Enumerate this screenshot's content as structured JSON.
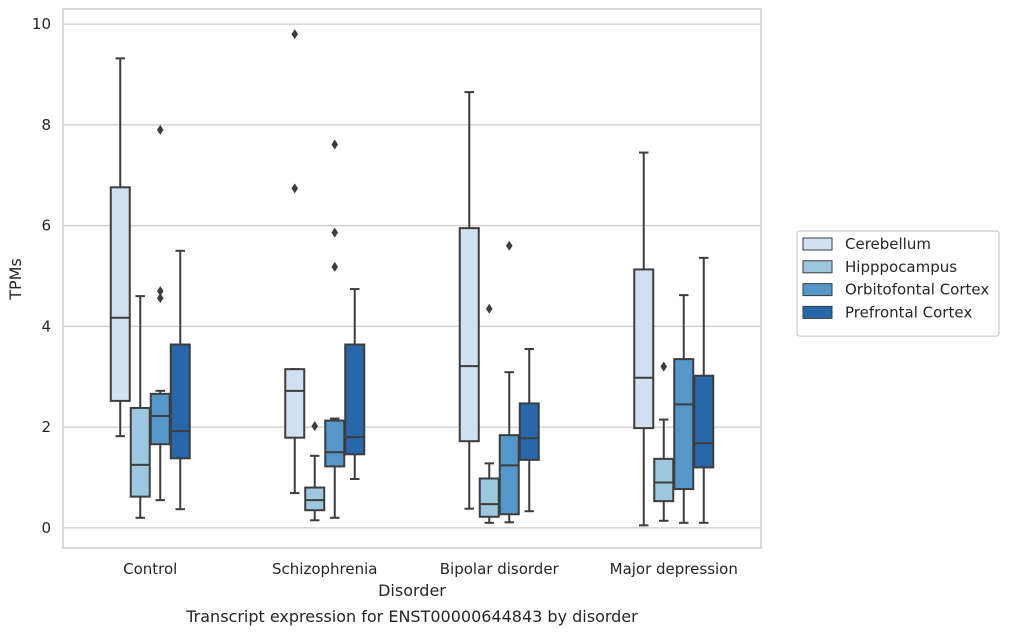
{
  "caption": "Transcript expression for ENST00000644843 by disorder",
  "chart_data": {
    "type": "box",
    "title": "",
    "xlabel": "Disorder",
    "ylabel": "TPMs",
    "ylim": [
      -0.4,
      10.3
    ],
    "yticks": [
      0,
      2,
      4,
      6,
      8,
      10
    ],
    "ytick_labels": [
      "0",
      "2",
      "4",
      "6",
      "8",
      "10"
    ],
    "grid": "horizontal",
    "legend_position": "right",
    "categories": [
      "Control",
      "Schizophrenia",
      "Bipolar disorder",
      "Major depression"
    ],
    "series": [
      {
        "name": "Cerebellum",
        "color": "#d0e1f2",
        "boxes": [
          {
            "whislo": 1.82,
            "q1": 2.52,
            "med": 4.17,
            "q3": 6.76,
            "whishi": 9.32,
            "fliers": []
          },
          {
            "whislo": 0.69,
            "q1": 1.79,
            "med": 2.72,
            "q3": 3.15,
            "whishi": 3.15,
            "fliers": [
              6.74,
              9.8
            ]
          },
          {
            "whislo": 0.38,
            "q1": 1.72,
            "med": 3.21,
            "q3": 5.95,
            "whishi": 8.65,
            "fliers": []
          },
          {
            "whislo": 0.05,
            "q1": 1.98,
            "med": 2.98,
            "q3": 5.13,
            "whishi": 7.45,
            "fliers": []
          }
        ]
      },
      {
        "name": "Hipppocampus",
        "color": "#9dc6df",
        "boxes": [
          {
            "whislo": 0.2,
            "q1": 0.62,
            "med": 1.25,
            "q3": 2.38,
            "whishi": 4.6,
            "fliers": []
          },
          {
            "whislo": 0.15,
            "q1": 0.35,
            "med": 0.55,
            "q3": 0.8,
            "whishi": 1.43,
            "fliers": [
              2.02
            ]
          },
          {
            "whislo": 0.1,
            "q1": 0.22,
            "med": 0.47,
            "q3": 0.98,
            "whishi": 1.28,
            "fliers": [
              4.35
            ]
          },
          {
            "whislo": 0.14,
            "q1": 0.53,
            "med": 0.9,
            "q3": 1.37,
            "whishi": 2.15,
            "fliers": [
              3.2
            ]
          }
        ]
      },
      {
        "name": "Orbitofontal Cortex",
        "color": "#5497c8",
        "boxes": [
          {
            "whislo": 0.55,
            "q1": 1.66,
            "med": 2.22,
            "q3": 2.66,
            "whishi": 2.72,
            "fliers": [
              4.56,
              4.7,
              7.9
            ]
          },
          {
            "whislo": 0.2,
            "q1": 1.22,
            "med": 1.5,
            "q3": 2.13,
            "whishi": 2.17,
            "fliers": [
              5.18,
              5.86,
              7.61
            ]
          },
          {
            "whislo": 0.11,
            "q1": 0.27,
            "med": 1.24,
            "q3": 1.84,
            "whishi": 3.09,
            "fliers": [
              5.6
            ]
          },
          {
            "whislo": 0.1,
            "q1": 0.77,
            "med": 2.45,
            "q3": 3.35,
            "whishi": 4.62,
            "fliers": []
          }
        ]
      },
      {
        "name": "Prefrontal Cortex",
        "color": "#2767aa",
        "boxes": [
          {
            "whislo": 0.37,
            "q1": 1.38,
            "med": 1.92,
            "q3": 3.64,
            "whishi": 5.5,
            "fliers": []
          },
          {
            "whislo": 0.97,
            "q1": 1.46,
            "med": 1.8,
            "q3": 3.64,
            "whishi": 4.74,
            "fliers": []
          },
          {
            "whislo": 0.33,
            "q1": 1.35,
            "med": 1.78,
            "q3": 2.47,
            "whishi": 3.55,
            "fliers": []
          },
          {
            "whislo": 0.1,
            "q1": 1.2,
            "med": 1.68,
            "q3": 3.02,
            "whishi": 5.36,
            "fliers": []
          }
        ]
      }
    ]
  }
}
